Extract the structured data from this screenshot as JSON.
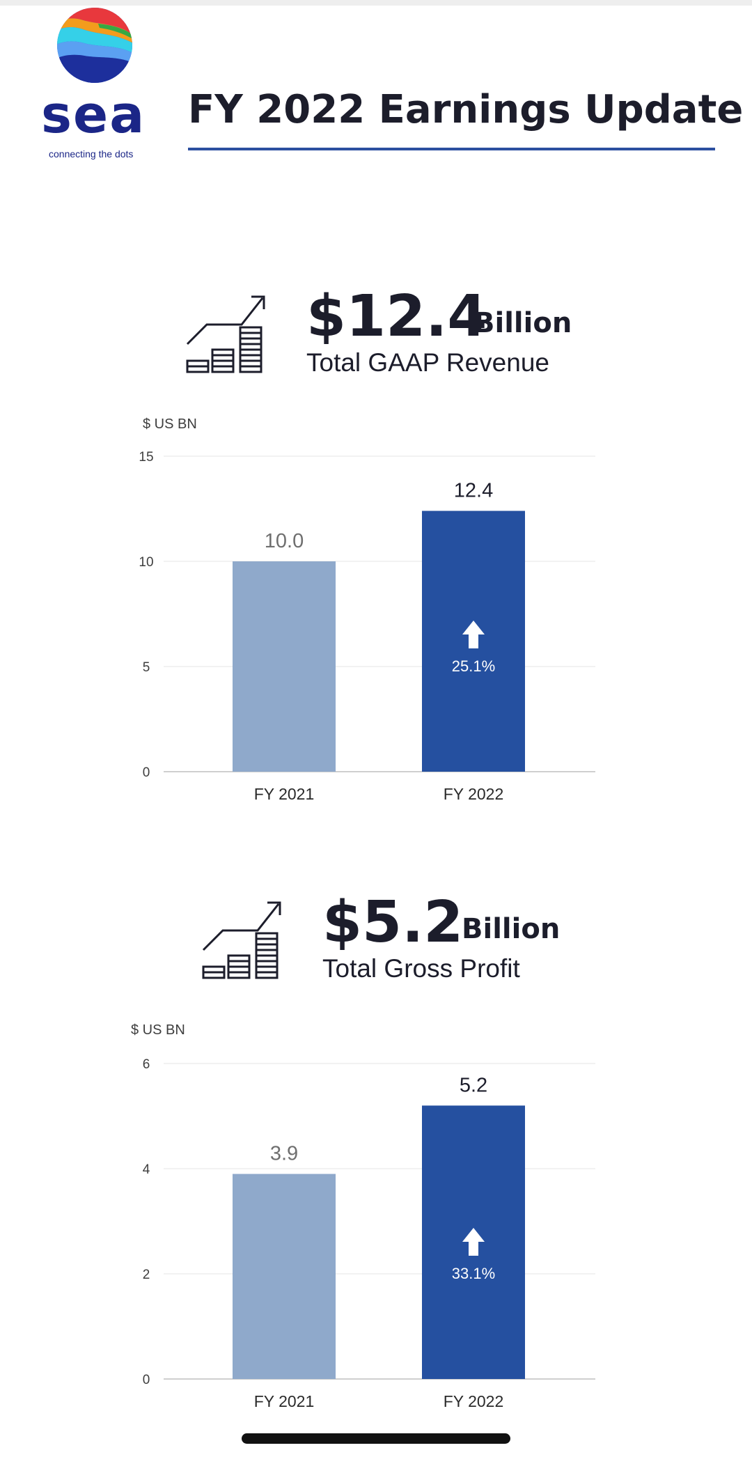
{
  "brand": {
    "name": "sea",
    "tagline": "connecting the dots"
  },
  "header": {
    "title": "FY 2022 Earnings Update"
  },
  "colors": {
    "fy2021_bar": "#8fa9cb",
    "fy2022_bar": "#2550a0",
    "title_rule": "#2c4fa0",
    "text": "#1c1d2b",
    "gridline": "#e6e6e6"
  },
  "revenue": {
    "icon": "growth-chart-icon",
    "value": "$12.4",
    "unit": "Billion",
    "label": "Total GAAP Revenue"
  },
  "gross_profit": {
    "icon": "growth-chart-icon",
    "value": "$5.2",
    "unit": "Billion",
    "label": "Total Gross Profit"
  },
  "chart_data": [
    {
      "type": "bar",
      "unit_label": "$ US BN",
      "categories": [
        "FY 2021",
        "FY 2022"
      ],
      "values": [
        10.0,
        12.4
      ],
      "value_labels": [
        "10.0",
        "12.4"
      ],
      "growth_label": "25.1%",
      "growth_icon": "arrow-up-icon",
      "ylim": [
        0,
        15
      ],
      "yticks": [
        0,
        5,
        10,
        15
      ],
      "grid": true
    },
    {
      "type": "bar",
      "unit_label": "$ US BN",
      "categories": [
        "FY 2021",
        "FY 2022"
      ],
      "values": [
        3.9,
        5.2
      ],
      "value_labels": [
        "3.9",
        "5.2"
      ],
      "growth_label": "33.1%",
      "growth_icon": "arrow-up-icon",
      "ylim": [
        0,
        6
      ],
      "yticks": [
        0,
        2,
        4,
        6
      ],
      "grid": true
    }
  ]
}
